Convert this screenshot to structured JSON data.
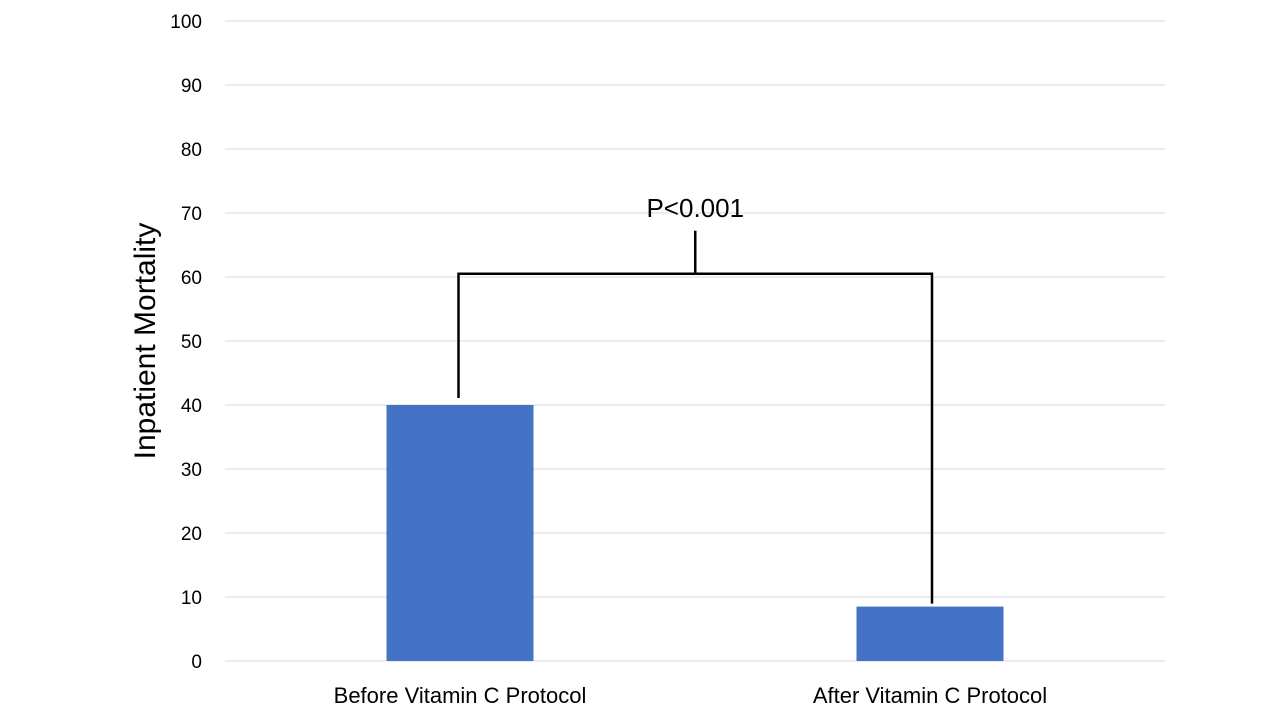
{
  "chart_data": {
    "type": "bar",
    "categories": [
      "Before Vitamin C Protocol",
      "After Vitamin C Protocol"
    ],
    "values": [
      40,
      8.5
    ],
    "title": "",
    "xlabel": "",
    "ylabel": "Inpatient Mortality",
    "ylim": [
      0,
      100
    ],
    "yticks": [
      0,
      10,
      20,
      30,
      40,
      50,
      60,
      70,
      80,
      90,
      100
    ],
    "grid": true,
    "legend": "none",
    "bar_color": "#4472C4",
    "grid_color": "#D9D9D9",
    "annotation": {
      "text": "P<0.001",
      "type": "significance-bracket",
      "level": 60.5
    }
  }
}
